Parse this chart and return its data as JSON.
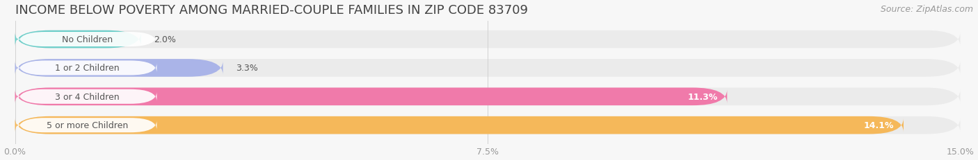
{
  "title": "INCOME BELOW POVERTY AMONG MARRIED-COUPLE FAMILIES IN ZIP CODE 83709",
  "source": "Source: ZipAtlas.com",
  "categories": [
    "No Children",
    "1 or 2 Children",
    "3 or 4 Children",
    "5 or more Children"
  ],
  "values": [
    2.0,
    3.3,
    11.3,
    14.1
  ],
  "bar_colors": [
    "#6ecfca",
    "#aab4e8",
    "#f07aaa",
    "#f5b85a"
  ],
  "bar_bg_color": "#ebebeb",
  "label_bg_color": "#ffffff",
  "xlim": [
    0,
    15.0
  ],
  "xticks": [
    0.0,
    7.5,
    15.0
  ],
  "xticklabels": [
    "0.0%",
    "7.5%",
    "15.0%"
  ],
  "title_fontsize": 13,
  "source_fontsize": 9,
  "label_fontsize": 9,
  "value_fontsize": 9,
  "bar_height": 0.62,
  "background_color": "#f7f7f7",
  "text_color": "#555555",
  "value_color_inside": "#ffffff",
  "tick_color": "#999999"
}
